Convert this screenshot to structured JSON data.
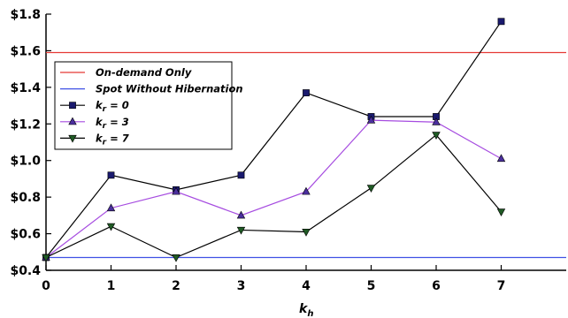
{
  "chart_data": {
    "type": "line",
    "xlabel": "k",
    "xlabel_sub": "h",
    "x": [
      0,
      1,
      2,
      3,
      4,
      5,
      6,
      7
    ],
    "xlim": [
      0,
      8
    ],
    "ylim": [
      0.4,
      1.8
    ],
    "x_tick_labels": [
      "0",
      "1",
      "2",
      "3",
      "4",
      "5",
      "6",
      "7"
    ],
    "y_tick_labels": [
      "$0.4",
      "$0.6",
      "$0.8",
      "$1.0",
      "$1.2",
      "$1.4",
      "$1.6",
      "$1.8"
    ],
    "y_ticks": [
      0.4,
      0.6,
      0.8,
      1.0,
      1.2,
      1.4,
      1.6,
      1.8
    ],
    "grid": false,
    "legend_placement": "upper-left",
    "reference_lines": [
      {
        "name": "On-demand Only",
        "y": 1.59,
        "color": "#e53935"
      },
      {
        "name": "Spot Without Hibernation",
        "y": 0.47,
        "color": "#3f51e5"
      }
    ],
    "series": [
      {
        "name_main": "k",
        "name_sub": "r",
        "name_suffix": " = 0",
        "color": "#000000",
        "marker_fill": "#1a1a6e",
        "marker": "square",
        "values": [
          0.47,
          0.92,
          0.84,
          0.92,
          1.37,
          1.24,
          1.24,
          1.76
        ]
      },
      {
        "name_main": "k",
        "name_sub": "r",
        "name_suffix": " = 3",
        "color": "#a64ce0",
        "marker_fill": "#4b2f9e",
        "marker": "triangle-up",
        "values": [
          0.47,
          0.74,
          0.83,
          0.7,
          0.83,
          1.22,
          1.21,
          1.01
        ]
      },
      {
        "name_main": "k",
        "name_sub": "r",
        "name_suffix": " = 7",
        "color": "#000000",
        "marker_fill": "#1f5a24",
        "marker": "triangle-down",
        "values": [
          0.47,
          0.64,
          0.47,
          0.62,
          0.61,
          0.85,
          1.14,
          0.72
        ]
      }
    ]
  }
}
